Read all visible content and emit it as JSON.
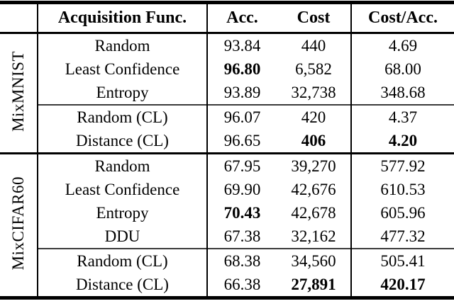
{
  "colors": {
    "text": "#000000",
    "background": "#ffffff",
    "rules": "#000000"
  },
  "table": {
    "columns": {
      "acquisition": "Acquisition Func.",
      "acc": "Acc.",
      "cost": "Cost",
      "cost_acc": "Cost/Acc."
    },
    "groups": [
      {
        "label": "MixMNIST",
        "standard": [
          {
            "name": "Random",
            "acc": "93.84",
            "cost": "440",
            "cost_acc": "4.69",
            "bold": []
          },
          {
            "name": "Least Confidence",
            "acc": "96.80",
            "cost": "6,582",
            "cost_acc": "68.00",
            "bold": [
              "acc"
            ]
          },
          {
            "name": "Entropy",
            "acc": "93.89",
            "cost": "32,738",
            "cost_acc": "348.68",
            "bold": []
          }
        ],
        "curriculum": [
          {
            "name": "Random (CL)",
            "acc": "96.07",
            "cost": "420",
            "cost_acc": "4.37",
            "bold": []
          },
          {
            "name": "Distance (CL)",
            "acc": "96.65",
            "cost": "406",
            "cost_acc": "4.20",
            "bold": [
              "cost",
              "cost_acc"
            ]
          }
        ]
      },
      {
        "label": "MixCIFAR60",
        "standard": [
          {
            "name": "Random",
            "acc": "67.95",
            "cost": "39,270",
            "cost_acc": "577.92",
            "bold": []
          },
          {
            "name": "Least Confidence",
            "acc": "69.90",
            "cost": "42,676",
            "cost_acc": "610.53",
            "bold": []
          },
          {
            "name": "Entropy",
            "acc": "70.43",
            "cost": "42,678",
            "cost_acc": "605.96",
            "bold": [
              "acc"
            ]
          },
          {
            "name": "DDU",
            "acc": "67.38",
            "cost": "32,162",
            "cost_acc": "477.32",
            "bold": []
          }
        ],
        "curriculum": [
          {
            "name": "Random (CL)",
            "acc": "68.38",
            "cost": "34,560",
            "cost_acc": "505.41",
            "bold": []
          },
          {
            "name": "Distance (CL)",
            "acc": "66.38",
            "cost": "27,891",
            "cost_acc": "420.17",
            "bold": [
              "cost",
              "cost_acc"
            ]
          }
        ]
      }
    ]
  }
}
